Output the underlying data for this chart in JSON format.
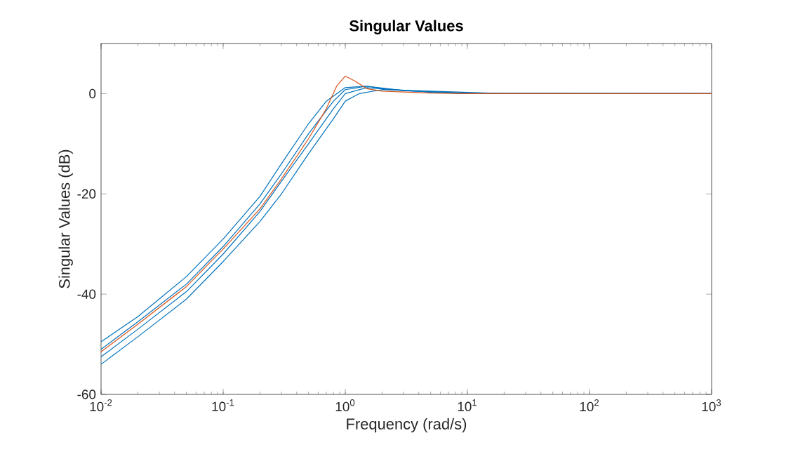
{
  "chart_data": {
    "type": "line",
    "title": "Singular Values",
    "xlabel": "Frequency (rad/s)",
    "ylabel": "Singular Values (dB)",
    "log": "x",
    "line_style": "solid",
    "xlim": [
      0.01,
      1000
    ],
    "ylim": [
      -60,
      10
    ],
    "xticks": [
      {
        "value": 0.01,
        "label": "10$^{-2}$"
      },
      {
        "value": 0.1,
        "label": "10$^{-1}$"
      },
      {
        "value": 1,
        "label": "10$^{0}$"
      },
      {
        "value": 10,
        "label": "10$^{1}$"
      },
      {
        "value": 100,
        "label": "10$^{2}$"
      },
      {
        "value": 1000,
        "label": "10$^{3}$"
      }
    ],
    "yticks": [
      -60,
      -40,
      -20,
      0
    ],
    "series": [
      {
        "color": "#0072bd",
        "x": [
          0.01,
          0.02,
          0.05,
          0.1,
          0.2,
          0.3,
          0.5,
          0.7,
          1,
          1.5,
          2,
          5,
          10,
          1000
        ],
        "values": [
          -49.5,
          -44.5,
          -36.5,
          -29,
          -20.5,
          -14,
          -6,
          -1.5,
          1.2,
          1.5,
          1,
          0.3,
          0,
          0
        ]
      },
      {
        "color": "#0072bd",
        "x": [
          0.01,
          0.02,
          0.05,
          0.1,
          0.2,
          0.3,
          0.5,
          0.8,
          1,
          1.5,
          3,
          10,
          1000
        ],
        "values": [
          -51,
          -45.5,
          -38,
          -30.5,
          -22,
          -16,
          -8,
          -1.5,
          0.8,
          1.5,
          0.6,
          0,
          0
        ]
      },
      {
        "color": "#0072bd",
        "x": [
          0.01,
          0.02,
          0.05,
          0.1,
          0.2,
          0.3,
          0.5,
          0.8,
          1,
          1.5,
          3,
          10,
          1000
        ],
        "values": [
          -52.5,
          -47,
          -39.5,
          -32,
          -23.5,
          -17.5,
          -10,
          -3,
          0,
          1.2,
          0.6,
          0.1,
          0
        ]
      },
      {
        "color": "#0072bd",
        "x": [
          0.01,
          0.02,
          0.05,
          0.1,
          0.2,
          0.3,
          0.5,
          0.8,
          1,
          1.3,
          2,
          5,
          20,
          1000
        ],
        "values": [
          -54,
          -48.5,
          -41,
          -33.5,
          -25.5,
          -20,
          -12,
          -5,
          -1.5,
          0,
          0.8,
          0.5,
          0,
          0
        ]
      },
      {
        "color": "#d95319",
        "x": [
          0.01,
          0.02,
          0.05,
          0.1,
          0.2,
          0.3,
          0.5,
          0.7,
          0.85,
          1,
          1.2,
          1.5,
          2,
          5,
          10,
          1000
        ],
        "values": [
          -51.5,
          -46,
          -38.5,
          -31,
          -23,
          -17,
          -9,
          -3,
          1.5,
          3.5,
          2.5,
          1,
          0.5,
          0.1,
          0,
          0
        ]
      }
    ]
  }
}
